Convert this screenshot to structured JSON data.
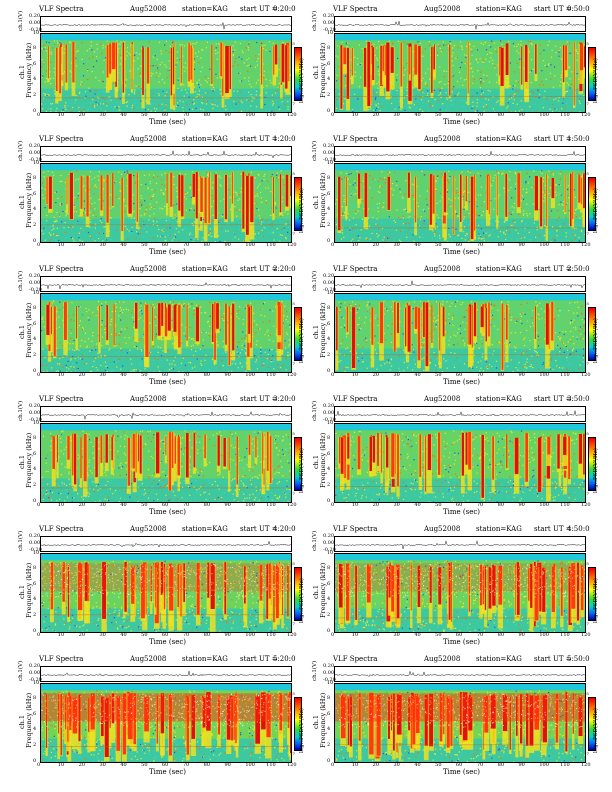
{
  "chart_data": {
    "type": "heatmap",
    "panel_header": {
      "title": "VLF Spectra",
      "date": "Aug52008",
      "station": "station=KAG",
      "start_prefix": "start UT ="
    },
    "labels": {
      "waveform_ylabel": "ch.1(V)",
      "ylabel_upper": "ch.1",
      "ylabel_lower": "Frequency (kHz)",
      "xlabel": "Time (sec)",
      "colorbar_label": "log₁₀PSD(V²/Hz)"
    },
    "waveform_ticks": [
      "0.20",
      "0.00",
      "-0.20"
    ],
    "freq_ticks": [
      "10",
      "8",
      "6",
      "4",
      "2",
      "0"
    ],
    "time_ticks": [
      "0",
      "10",
      "20",
      "30",
      "40",
      "50",
      "60",
      "70",
      "80",
      "90",
      "100",
      "110",
      "120"
    ],
    "colorbar_ticks": [
      "-5",
      "-7"
    ],
    "xlim": [
      0,
      120
    ],
    "ylim_khz": [
      0,
      10
    ],
    "panels": [
      {
        "start_ut": "0:20:0",
        "intensity": 0.45
      },
      {
        "start_ut": "0:50:0",
        "intensity": 0.45
      },
      {
        "start_ut": "1:20:0",
        "intensity": 0.38
      },
      {
        "start_ut": "1:50:0",
        "intensity": 0.33
      },
      {
        "start_ut": "2:20:0",
        "intensity": 0.42
      },
      {
        "start_ut": "2:50:0",
        "intensity": 0.4
      },
      {
        "start_ut": "3:20:0",
        "intensity": 0.48
      },
      {
        "start_ut": "3:50:0",
        "intensity": 0.55
      },
      {
        "start_ut": "4:20:0",
        "intensity": 0.72
      },
      {
        "start_ut": "4:50:0",
        "intensity": 0.7
      },
      {
        "start_ut": "5:20:0",
        "intensity": 0.88
      },
      {
        "start_ut": "5:50:0",
        "intensity": 0.88
      }
    ]
  }
}
